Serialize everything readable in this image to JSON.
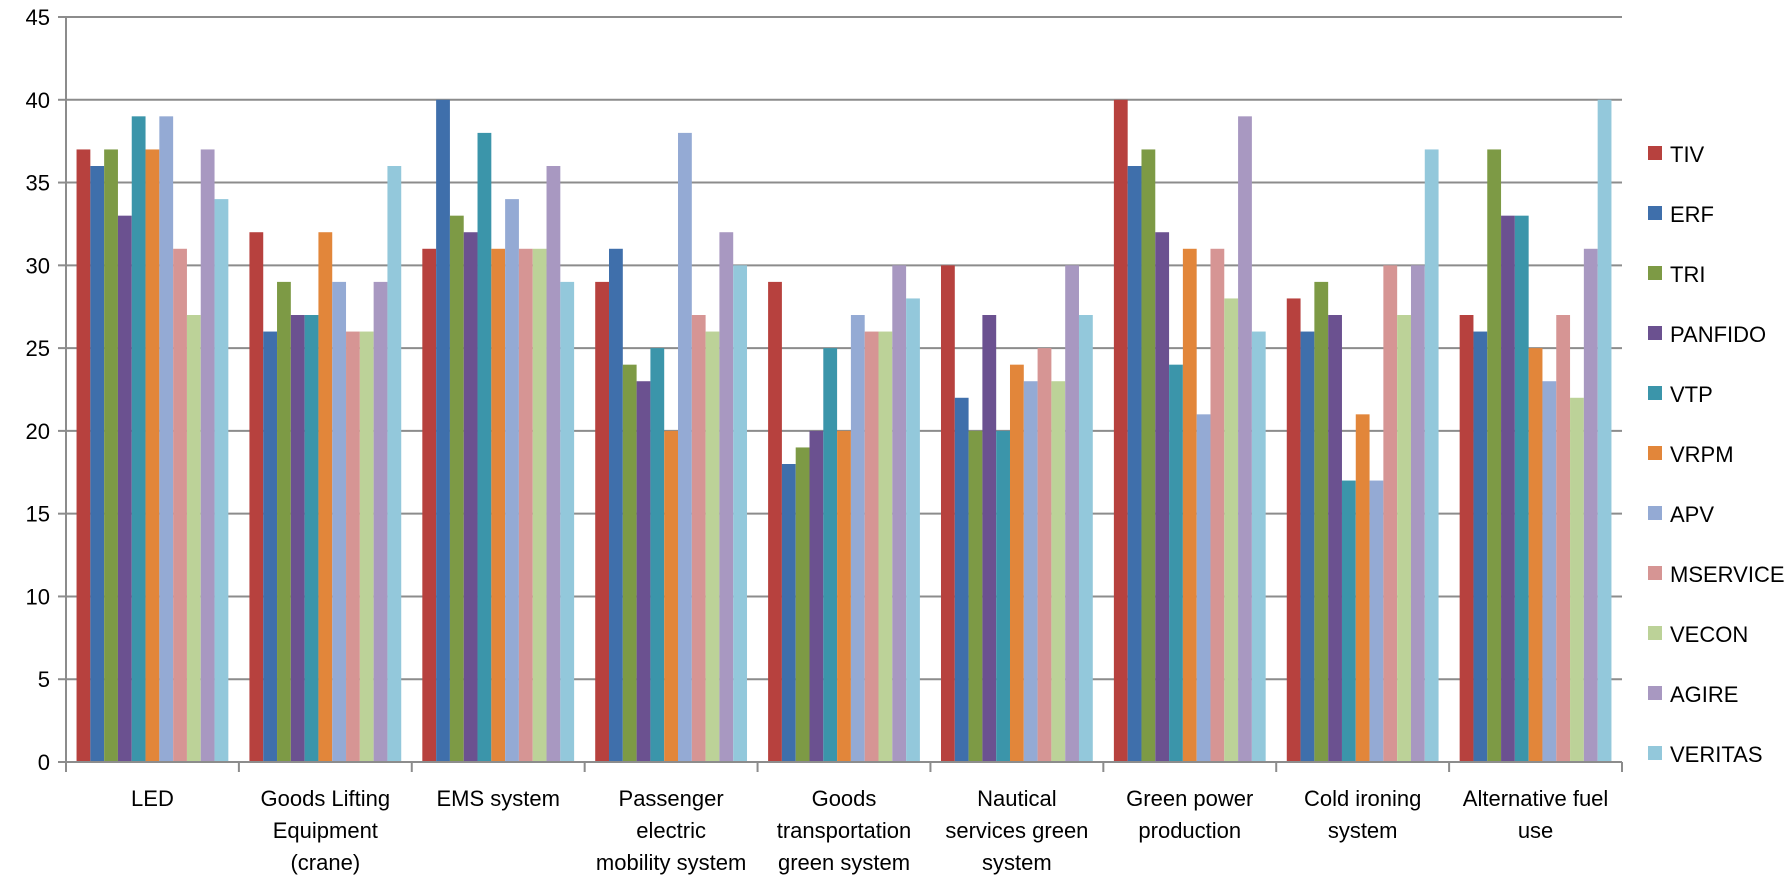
{
  "chart_data": {
    "type": "bar",
    "title": "",
    "xlabel": "",
    "ylabel": "",
    "ylim": [
      0,
      45
    ],
    "yticks": [
      0,
      5,
      10,
      15,
      20,
      25,
      30,
      35,
      40,
      45
    ],
    "grid": true,
    "legend_position": "right",
    "categories": [
      [
        "LED"
      ],
      [
        "Goods Lifting",
        "Equipment",
        "(crane)"
      ],
      [
        "EMS system"
      ],
      [
        "Passenger",
        "electric",
        "mobility system"
      ],
      [
        "Goods",
        "transportation",
        "green system"
      ],
      [
        "Nautical",
        "services green",
        "system"
      ],
      [
        "Green power",
        "production"
      ],
      [
        "Cold ironing",
        "system"
      ],
      [
        "Alternative fuel",
        "use"
      ]
    ],
    "series": [
      {
        "name": "TIV",
        "color": "#b7413e",
        "values": [
          37,
          32,
          31,
          29,
          29,
          30,
          40,
          28,
          27
        ]
      },
      {
        "name": "ERF",
        "color": "#3f6fab",
        "values": [
          36,
          26,
          40,
          31,
          18,
          22,
          36,
          26,
          26
        ]
      },
      {
        "name": "TRI",
        "color": "#7d9a45",
        "values": [
          37,
          29,
          33,
          24,
          19,
          20,
          37,
          29,
          37
        ]
      },
      {
        "name": "PANFIDO",
        "color": "#6b5190",
        "values": [
          33,
          27,
          32,
          23,
          20,
          27,
          32,
          27,
          33
        ]
      },
      {
        "name": "VTP",
        "color": "#3b95aa",
        "values": [
          39,
          27,
          38,
          25,
          25,
          20,
          24,
          17,
          33
        ]
      },
      {
        "name": "VRPM",
        "color": "#e2863a",
        "values": [
          37,
          32,
          31,
          20,
          20,
          24,
          31,
          21,
          25
        ]
      },
      {
        "name": "APV",
        "color": "#94aad4",
        "values": [
          39,
          29,
          34,
          38,
          27,
          23,
          21,
          17,
          23
        ]
      },
      {
        "name": "MSERVICE",
        "color": "#d69594",
        "values": [
          31,
          26,
          31,
          27,
          26,
          25,
          31,
          30,
          27
        ]
      },
      {
        "name": "VECON",
        "color": "#bcd298",
        "values": [
          27,
          26,
          31,
          26,
          26,
          23,
          28,
          27,
          22
        ]
      },
      {
        "name": "AGIRE",
        "color": "#a898c1",
        "values": [
          37,
          29,
          36,
          32,
          30,
          30,
          39,
          30,
          31
        ]
      },
      {
        "name": "VERITAS",
        "color": "#93c8db",
        "values": [
          34,
          36,
          29,
          30,
          28,
          27,
          26,
          37,
          40
        ]
      }
    ]
  }
}
